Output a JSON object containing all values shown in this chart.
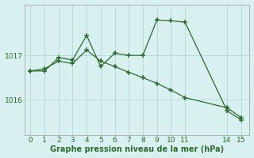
{
  "line1_x": [
    0,
    1,
    2,
    3,
    4,
    5,
    6,
    7,
    8,
    9,
    10,
    11,
    14,
    15
  ],
  "line1_y": [
    1016.65,
    1016.65,
    1016.95,
    1016.9,
    1017.45,
    1016.75,
    1017.05,
    1017.0,
    1017.0,
    1017.8,
    1017.78,
    1017.75,
    1015.75,
    1015.55
  ],
  "line2_x": [
    0,
    1,
    2,
    3,
    4,
    5,
    6,
    7,
    8,
    9,
    10,
    11,
    14,
    15
  ],
  "line2_y": [
    1016.65,
    1016.7,
    1016.87,
    1016.82,
    1017.12,
    1016.87,
    1016.75,
    1016.62,
    1016.5,
    1016.37,
    1016.22,
    1016.05,
    1015.82,
    1015.6
  ],
  "line_color": "#2d6a2d",
  "bg_color": "#d8f0f0",
  "grid_color": "#b8dada",
  "xlabel": "Graphe pression niveau de la mer (hPa)",
  "yticks": [
    1016,
    1017
  ],
  "xticks": [
    0,
    1,
    2,
    3,
    4,
    5,
    6,
    7,
    8,
    9,
    10,
    11,
    14,
    15
  ],
  "ylim": [
    1015.2,
    1018.15
  ],
  "xlim": [
    -0.4,
    15.6
  ]
}
